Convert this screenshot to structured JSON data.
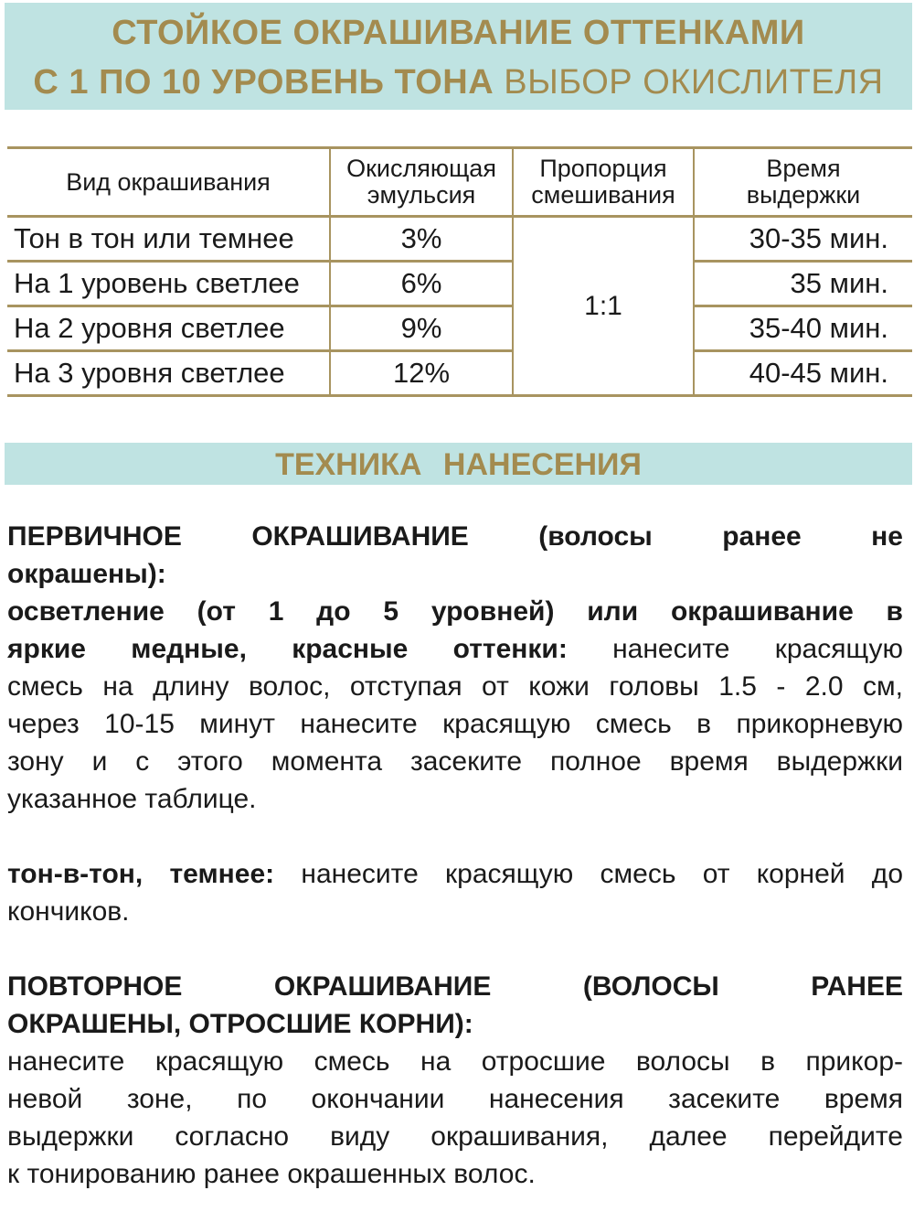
{
  "header": {
    "line1": "СТОЙКОЕ ОКРАШИВАНИЕ  ОТТЕНКАМИ",
    "line2_bold": "С 1 ПО 10 УРОВЕНЬ ТОНА",
    "line2_regular": "ВЫБОР ОКИСЛИТЕЛЯ"
  },
  "colors": {
    "banner_bg": "#bfe3e2",
    "gold": "#a38b4f",
    "rule": "#a89460"
  },
  "table": {
    "headers": [
      "Вид окрашивания",
      "Окисляющая эмульсия",
      "Пропорция смешивания",
      "Время выдержки"
    ],
    "mix_ratio": "1:1",
    "rows": [
      {
        "type": "Тон в тон или темнее",
        "oxidant": "3%",
        "time": "30-35 мин."
      },
      {
        "type": "На 1 уровень светлее",
        "oxidant": "6%",
        "time": "35 мин."
      },
      {
        "type": "На 2 уровня светлее",
        "oxidant": "9%",
        "time": "35-40 мин."
      },
      {
        "type": "На 3 уровня светлее",
        "oxidant": "12%",
        "time": "40-45 мин."
      }
    ]
  },
  "section2": {
    "title": "ТЕХНИКА  НАНЕСЕНИЯ"
  },
  "body_lines": [
    [
      {
        "b": true,
        "t": "ПЕРВИЧНОЕ ОКРАШИВАНИЕ (волосы ранее не"
      }
    ],
    [
      {
        "b": true,
        "t": "окрашены):"
      }
    ],
    [
      {
        "b": true,
        "t": "осветление (от 1 до 5 уровней) или окрашивание в"
      }
    ],
    [
      {
        "b": true,
        "t": "яркие медные, красные оттенки:"
      },
      {
        "b": false,
        "t": " нанесите красящую"
      }
    ],
    [
      {
        "b": false,
        "t": "смесь на длину волос, отступая от кожи головы 1.5 - 2.0 см,"
      }
    ],
    [
      {
        "b": false,
        "t": "через 10-15 минут нанесите красящую смесь в прикорневую"
      }
    ],
    [
      {
        "b": false,
        "t": "зону и с этого момента засеките полное время выдержки"
      }
    ],
    [
      {
        "b": false,
        "t": "указанное таблице."
      }
    ],
    [],
    [
      {
        "b": true,
        "t": "тон-в-тон, темнее:"
      },
      {
        "b": false,
        "t": " нанесите красящую смесь от корней до"
      }
    ],
    [
      {
        "b": false,
        "t": "кончиков."
      }
    ],
    [],
    [
      {
        "b": true,
        "t": "ПОВТОРНОЕ ОКРАШИВАНИЕ (ВОЛОСЫ РАНЕЕ"
      }
    ],
    [
      {
        "b": true,
        "t": "ОКРАШЕНЫ, ОТРОСШИЕ КОРНИ):"
      }
    ],
    [
      {
        "b": false,
        "t": "нанесите красящую смесь на отросшие волосы в прикор-"
      }
    ],
    [
      {
        "b": false,
        "t": "невой зоне, по окончании нанесения засеките время"
      }
    ],
    [
      {
        "b": false,
        "t": "выдержки согласно виду окрашивания, далее перейдите"
      }
    ],
    [
      {
        "b": false,
        "t": "к тонированию ранее окрашенных волос."
      }
    ]
  ]
}
